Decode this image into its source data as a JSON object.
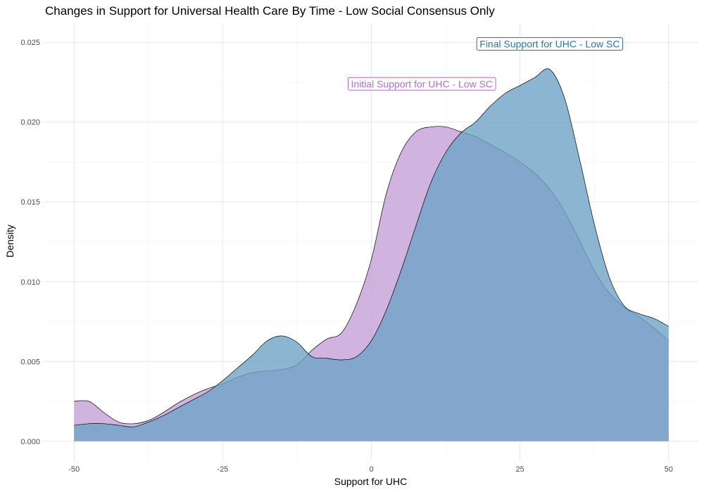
{
  "chart_data": {
    "type": "area",
    "title": "Changes in Support for Universal Health Care By Time - Low Social Consensus Only",
    "xlabel": "Support for UHC",
    "ylabel": "Density",
    "xlim": [
      -55,
      55
    ],
    "ylim": [
      -0.0012,
      0.0262
    ],
    "x_ticks": [
      -50,
      -25,
      0,
      25,
      50
    ],
    "x_tick_labels": [
      "-50",
      "-25",
      "0",
      "25",
      "50"
    ],
    "y_ticks": [
      0,
      0.005,
      0.01,
      0.015,
      0.02,
      0.025
    ],
    "y_tick_labels": [
      "0.000",
      "0.005",
      "0.010",
      "0.015",
      "0.020",
      "0.025"
    ],
    "grid": true,
    "series": [
      {
        "name": "Initial Support for UHC - Low SC",
        "color": "#c4a0d6",
        "x": [
          -50,
          -47.5,
          -45,
          -42.5,
          -40,
          -37.5,
          -35,
          -32.5,
          -30,
          -27.5,
          -25,
          -22.5,
          -20,
          -17.5,
          -15,
          -12.5,
          -10,
          -7.5,
          -5,
          -2.5,
          0,
          2.5,
          5,
          7.5,
          10,
          12.5,
          15,
          17.5,
          20,
          22.5,
          25,
          27.5,
          30,
          32.5,
          35,
          37.5,
          40,
          42.5,
          45,
          47.5,
          50
        ],
        "y": [
          0.0025,
          0.0025,
          0.0018,
          0.0012,
          0.0011,
          0.0013,
          0.0018,
          0.0024,
          0.0029,
          0.0033,
          0.0036,
          0.004,
          0.0043,
          0.0044,
          0.0045,
          0.0048,
          0.0057,
          0.0064,
          0.0068,
          0.0086,
          0.0114,
          0.0155,
          0.0181,
          0.0194,
          0.0197,
          0.0197,
          0.0194,
          0.0191,
          0.0186,
          0.0181,
          0.0175,
          0.0168,
          0.0158,
          0.0144,
          0.0126,
          0.0107,
          0.0093,
          0.0084,
          0.0078,
          0.0071,
          0.0063
        ]
      },
      {
        "name": "Final Support for UHC - Low SC",
        "color": "#6fa3c7",
        "x": [
          -50,
          -47.5,
          -45,
          -42.5,
          -40,
          -37.5,
          -35,
          -32.5,
          -30,
          -27.5,
          -25,
          -22.5,
          -20,
          -17.5,
          -15,
          -12.5,
          -10,
          -7.5,
          -5,
          -2.5,
          0,
          2.5,
          5,
          7.5,
          10,
          12.5,
          15,
          17.5,
          20,
          22.5,
          25,
          27.5,
          30,
          32.5,
          35,
          37.5,
          40,
          42.5,
          45,
          47.5,
          50
        ],
        "y": [
          0.001,
          0.0011,
          0.0011,
          0.001,
          0.0009,
          0.0012,
          0.0016,
          0.0021,
          0.0026,
          0.0031,
          0.0038,
          0.0046,
          0.0054,
          0.0063,
          0.0066,
          0.0062,
          0.0053,
          0.0052,
          0.0051,
          0.0053,
          0.0063,
          0.0082,
          0.0107,
          0.0135,
          0.0162,
          0.0181,
          0.0193,
          0.02,
          0.021,
          0.0218,
          0.0223,
          0.0228,
          0.0233,
          0.0215,
          0.0177,
          0.0136,
          0.0103,
          0.0085,
          0.008,
          0.0077,
          0.0072
        ]
      }
    ],
    "annotations": [
      {
        "text": "Initial Support for UHC - Low SC",
        "x": 8.5,
        "y": 0.0224,
        "color": "#b36fcc"
      },
      {
        "text": "Final Support for UHC - Low SC",
        "x": 30,
        "y": 0.0249,
        "color": "#2f76a8"
      }
    ]
  }
}
